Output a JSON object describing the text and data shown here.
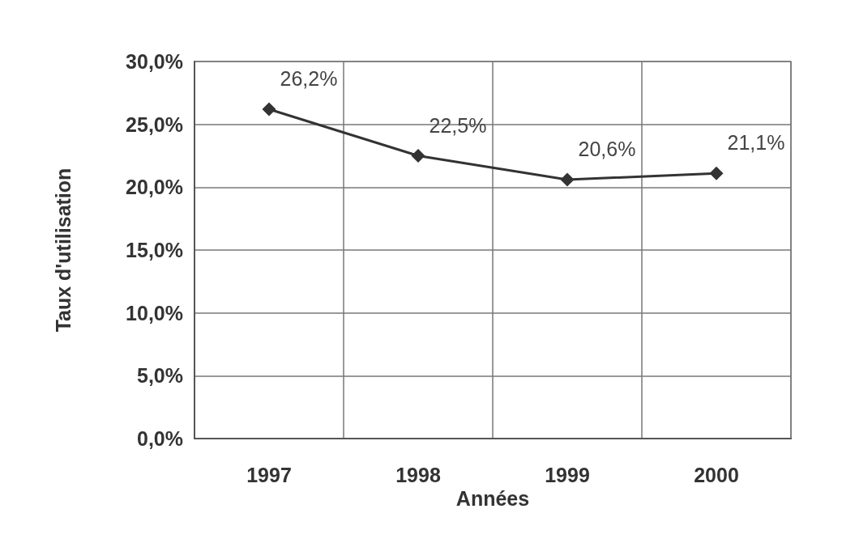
{
  "chart_data": {
    "type": "line",
    "xlabel": "Années",
    "ylabel": "Taux d'utilisation",
    "categories": [
      "1997",
      "1998",
      "1999",
      "2000"
    ],
    "series": [
      {
        "color": "#333333",
        "values": [
          26.2,
          22.5,
          20.6,
          21.1
        ],
        "value_labels": [
          "26,2%",
          "22,5%",
          "20,6%",
          "21,1%"
        ]
      }
    ],
    "ylim": [
      0,
      30
    ],
    "yticks": [
      {
        "value": 0,
        "label": "0,0%"
      },
      {
        "value": 5,
        "label": "5,0%"
      },
      {
        "value": 10,
        "label": "10,0%"
      },
      {
        "value": 15,
        "label": "15,0%"
      },
      {
        "value": 20,
        "label": "20,0%"
      },
      {
        "value": 25,
        "label": "25,0%"
      },
      {
        "value": 30,
        "label": "30,0%"
      }
    ],
    "grid": true,
    "marker": "diamond",
    "line_style": "solid"
  }
}
